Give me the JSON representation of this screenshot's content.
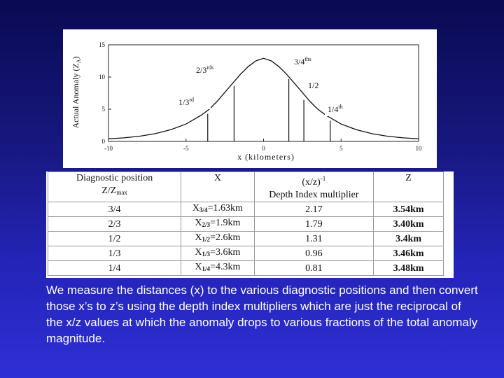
{
  "colors": {
    "curve": "#111111",
    "slide_top": "#0a0a52",
    "slide_bottom": "#2f2fd6",
    "caption": "#ffffff"
  },
  "chart_data": {
    "type": "line",
    "xlabel": "x (kilometers)",
    "ylabel": "Actual Anomaly (Z",
    "ylabel_sub": "A",
    "ylabel_end": ")",
    "xlim": [
      -10,
      10
    ],
    "ylim": [
      0,
      15
    ],
    "xticks": [
      -10,
      -5,
      0,
      5,
      10
    ],
    "xtick_labels": [
      "-10",
      "-5",
      "0",
      "5",
      "10"
    ],
    "yticks": [
      0,
      5,
      10,
      15
    ],
    "ytick_labels": [
      "0",
      "5",
      "10",
      "15"
    ],
    "series": [
      {
        "x": [
          -10,
          -9,
          -8,
          -7,
          -6,
          -5,
          -4,
          -3.5,
          -3,
          -2.5,
          -2,
          -1.5,
          -1,
          -0.5,
          0,
          0.5,
          1,
          1.5,
          2,
          2.5,
          3,
          3.5,
          4,
          5,
          6,
          7,
          8,
          9,
          10
        ],
        "y": [
          0.4,
          0.55,
          0.8,
          1.2,
          1.8,
          2.7,
          4.1,
          5.0,
          6.2,
          7.6,
          9.0,
          10.4,
          11.6,
          12.5,
          12.9,
          12.5,
          11.6,
          10.4,
          9.0,
          7.6,
          6.2,
          5.0,
          4.1,
          2.7,
          1.8,
          1.2,
          0.8,
          0.55,
          0.4
        ]
      }
    ],
    "vertical_lines": [
      {
        "x": -3.6,
        "y": 4.3
      },
      {
        "x": -1.9,
        "y": 8.6
      },
      {
        "x": 1.63,
        "y": 9.7
      },
      {
        "x": 2.6,
        "y": 6.45
      },
      {
        "x": 4.3,
        "y": 3.2
      }
    ],
    "annotations": [
      {
        "text": "2/3",
        "sup": "rds"
      },
      {
        "text": "3/4",
        "sup": "ths"
      },
      {
        "text": "1/2",
        "sup": ""
      },
      {
        "text": "1/3",
        "sup": "rd"
      },
      {
        "text": "1/4",
        "sup": "th"
      }
    ]
  },
  "table": {
    "header": {
      "col1_line1": "Diagnostic position",
      "col1_line2_main": "Z/Z",
      "col1_line2_sub": "max",
      "col2": "X",
      "col3_line1_main": "(x/z)",
      "col3_line1_sup": "-1",
      "col3_line2": "Depth Index multiplier",
      "col4": "Z"
    },
    "rows": [
      {
        "position": "3/4",
        "x_main": "X",
        "x_sub": "3/4",
        "x_val": "=1.63km",
        "multiplier": "2.17",
        "z": "3.54km"
      },
      {
        "position": "2/3",
        "x_main": "X",
        "x_sub": "2/3",
        "x_val": "=1.9km",
        "multiplier": "1.79",
        "z": "3.40km"
      },
      {
        "position": "1/2",
        "x_main": "X",
        "x_sub": "1/2",
        "x_val": "=2.6km",
        "multiplier": "1.31",
        "z": "3.4km"
      },
      {
        "position": "1/3",
        "x_main": "X",
        "x_sub": "1/3",
        "x_val": "=3.6km",
        "multiplier": "0.96",
        "z": "3.46km"
      },
      {
        "position": "1/4",
        "x_main": "X",
        "x_sub": "1/4",
        "x_val": "=4.3km",
        "multiplier": "0.81",
        "z": "3.48km"
      }
    ]
  },
  "caption": "We measure the distances (x) to the various diagnostic positions and then convert those x’s to z’s using the depth index multipliers which are just the reciprocal of the x/z values at which the anomaly drops to various fractions of the total anomaly magnitude."
}
